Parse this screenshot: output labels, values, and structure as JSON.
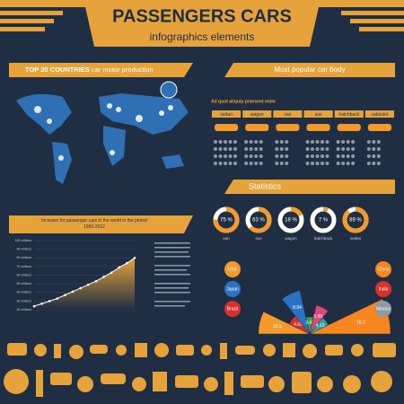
{
  "header": {
    "title": "PASSENGERS CARS",
    "subtitle": "infographics elements"
  },
  "map": {
    "title_bold": "TOP 20 COUNTRIES",
    "title_rest": "car motor production"
  },
  "car_body": {
    "title": "Most popular car body",
    "caption": "Ad quot aliquip praesent enim",
    "types": [
      "sedan",
      "wagon",
      "van",
      "suv",
      "hatchback",
      "cabriolet"
    ]
  },
  "statistics": {
    "title": "Statistics",
    "donuts": [
      {
        "value": 75,
        "label": "75 %",
        "name": "van"
      },
      {
        "value": 63,
        "label": "63 %",
        "name": "suv"
      },
      {
        "value": 18,
        "label": "18 %",
        "name": "wagon"
      },
      {
        "value": 7,
        "label": "7 %",
        "name": "hatchback"
      },
      {
        "value": 89,
        "label": "89 %",
        "name": "sedan"
      }
    ]
  },
  "growth": {
    "title": "Increase for passenger cars in the world in the period 1950-2012",
    "yticks": [
      {
        "value": 20,
        "label": "20 millions"
      },
      {
        "value": 30,
        "label": "30 millions"
      },
      {
        "value": 40,
        "label": "40 millions"
      },
      {
        "value": 50,
        "label": "50 millions"
      },
      {
        "value": 60,
        "label": "60 millions"
      },
      {
        "value": 70,
        "label": "70 millions"
      },
      {
        "value": 80,
        "label": "80 millions"
      },
      {
        "value": 90,
        "label": "90 millions"
      },
      {
        "value": 100,
        "label": "100 millions"
      }
    ],
    "values": [
      24,
      27,
      30,
      33,
      37,
      41,
      45,
      49,
      53,
      58,
      63,
      69,
      74,
      80
    ]
  },
  "polar": {
    "values": [
      10.3,
      4.6,
      8.94,
      3.43,
      5.89,
      4.13,
      16.2
    ],
    "value_labels": [
      "10.3",
      "4.60",
      "8.94",
      "3.43",
      "5.89",
      "4.13",
      "16.2"
    ],
    "colors": [
      "#f39a2b",
      "#d9302c",
      "#2b72c2",
      "#3ea64a",
      "#e0457a",
      "#2aa6a6",
      "#f7861f"
    ]
  },
  "legend": {
    "left": [
      "USA",
      "Japan",
      "Brazil"
    ],
    "right": [
      "China",
      "India",
      "Mexico"
    ]
  }
}
